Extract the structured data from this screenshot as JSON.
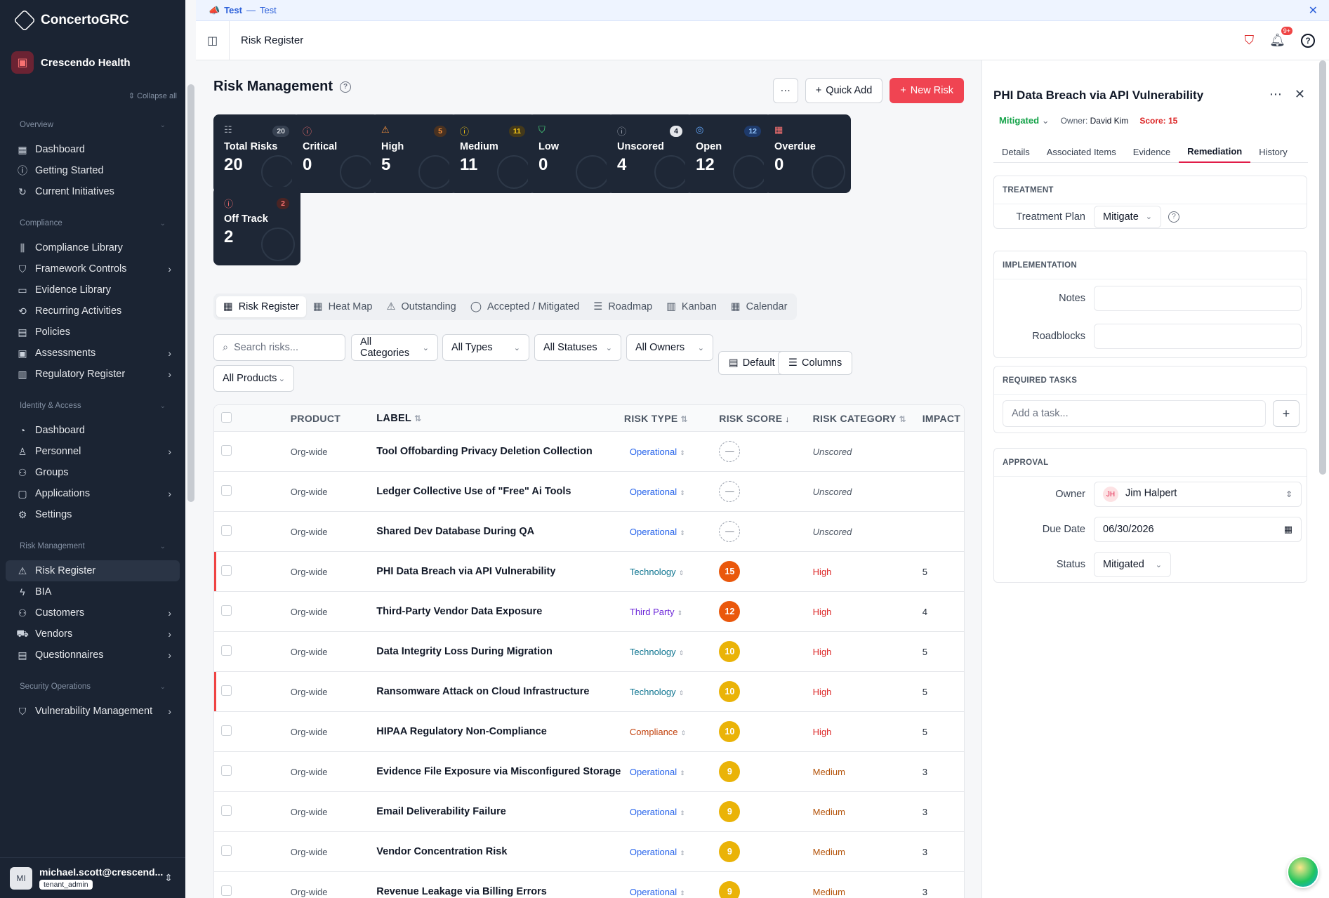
{
  "app": {
    "brand": "ConcertoGRC",
    "tenant": "Crescendo Health",
    "collapse_all": "Collapse all"
  },
  "sidebar": {
    "sections": [
      {
        "title": "Overview",
        "items": [
          {
            "label": "Dashboard",
            "icon": "grid-icon"
          },
          {
            "label": "Getting Started",
            "icon": "help-circle-icon"
          },
          {
            "label": "Current Initiatives",
            "icon": "refresh-icon"
          }
        ]
      },
      {
        "title": "Compliance",
        "items": [
          {
            "label": "Compliance Library",
            "icon": "library-icon"
          },
          {
            "label": "Framework Controls",
            "icon": "shield-icon",
            "expand": true
          },
          {
            "label": "Evidence Library",
            "icon": "archive-icon"
          },
          {
            "label": "Recurring Activities",
            "icon": "repeat-icon"
          },
          {
            "label": "Policies",
            "icon": "file-icon"
          },
          {
            "label": "Assessments",
            "icon": "clipboard-icon",
            "expand": true
          },
          {
            "label": "Regulatory Register",
            "icon": "book-icon",
            "expand": true
          }
        ]
      },
      {
        "title": "Identity & Access",
        "items": [
          {
            "label": "Dashboard",
            "icon": "gauge-icon"
          },
          {
            "label": "Personnel",
            "icon": "user-icon",
            "expand": true
          },
          {
            "label": "Groups",
            "icon": "users-icon"
          },
          {
            "label": "Applications",
            "icon": "app-window-icon",
            "expand": true
          },
          {
            "label": "Settings",
            "icon": "gear-icon"
          }
        ]
      },
      {
        "title": "Risk Management",
        "items": [
          {
            "label": "Risk Register",
            "icon": "warning-icon",
            "active": true
          },
          {
            "label": "BIA",
            "icon": "bolt-icon"
          },
          {
            "label": "Customers",
            "icon": "users-icon",
            "expand": true
          },
          {
            "label": "Vendors",
            "icon": "truck-icon",
            "expand": true
          },
          {
            "label": "Questionnaires",
            "icon": "file-icon",
            "expand": true
          }
        ]
      },
      {
        "title": "Security Operations",
        "items": [
          {
            "label": "Vulnerability Management",
            "icon": "shield-icon",
            "expand": true
          }
        ]
      }
    ],
    "user": {
      "initials": "MI",
      "name": "michael.scott@crescend...",
      "role": "tenant_admin"
    }
  },
  "banner": {
    "title": "Test",
    "sep": "—",
    "text": "Test"
  },
  "topbar": {
    "breadcrumb": "Risk Register",
    "notif_count": "9+"
  },
  "main": {
    "title": "Risk Management",
    "actions": {
      "more": "···",
      "quick_add": "Quick Add",
      "new_risk": "New Risk"
    },
    "cards": [
      {
        "label": "Total Risks",
        "value": "20",
        "badge": "20",
        "icon": "list-icon",
        "icon_color": "#9ca3af",
        "badge_bg": "#374151",
        "badge_fg": "#d1d5db"
      },
      {
        "label": "Critical",
        "value": "0",
        "badge": "",
        "icon": "alert-circle-icon",
        "icon_color": "#f87171",
        "badge_bg": "",
        "badge_fg": ""
      },
      {
        "label": "High",
        "value": "5",
        "badge": "5",
        "icon": "warning-icon",
        "icon_color": "#fb923c",
        "badge_bg": "#4a3221",
        "badge_fg": "#fb923c"
      },
      {
        "label": "Medium",
        "value": "11",
        "badge": "11",
        "icon": "alert-circle-icon",
        "icon_color": "#facc15",
        "badge_bg": "#44391a",
        "badge_fg": "#facc15"
      },
      {
        "label": "Low",
        "value": "0",
        "badge": "",
        "icon": "shield-icon",
        "icon_color": "#4ade80",
        "badge_bg": "",
        "badge_fg": ""
      },
      {
        "label": "Unscored",
        "value": "4",
        "badge": "4",
        "icon": "help-circle-icon",
        "icon_color": "#9ca3af",
        "badge_bg": "#e5e7eb",
        "badge_fg": "#111827"
      },
      {
        "label": "Open",
        "value": "12",
        "badge": "12",
        "icon": "target-icon",
        "icon_color": "#60a5fa",
        "badge_bg": "#1e3a6b",
        "badge_fg": "#93c5fd"
      },
      {
        "label": "Overdue",
        "value": "0",
        "badge": "",
        "icon": "calendar-icon",
        "icon_color": "#f87171",
        "badge_bg": "",
        "badge_fg": ""
      },
      {
        "label": "Off Track",
        "value": "2",
        "badge": "2",
        "icon": "alert-circle-icon",
        "icon_color": "#f87171",
        "badge_bg": "#4a2424",
        "badge_fg": "#f87171"
      }
    ],
    "tabs": [
      {
        "label": "Risk Register",
        "icon": "table-icon",
        "active": true
      },
      {
        "label": "Heat Map",
        "icon": "grid-icon"
      },
      {
        "label": "Outstanding",
        "icon": "warning-icon"
      },
      {
        "label": "Accepted / Mitigated",
        "icon": "check-circle-icon"
      },
      {
        "label": "Roadmap",
        "icon": "roadmap-icon"
      },
      {
        "label": "Kanban",
        "icon": "kanban-icon"
      },
      {
        "label": "Calendar",
        "icon": "calendar-icon"
      }
    ],
    "filters": {
      "search_placeholder": "Search risks...",
      "categories": "All Categories",
      "types": "All Types",
      "statuses": "All Statuses",
      "owners": "All Owners",
      "products": "All Products",
      "default_btn": "Default",
      "columns_btn": "Columns"
    },
    "table": {
      "headers": {
        "product": "PRODUCT",
        "label": "LABEL",
        "type": "RISK TYPE",
        "score": "RISK SCORE",
        "category": "RISK CATEGORY",
        "impact": "IMPACT"
      },
      "rows": [
        {
          "product": "Org-wide",
          "label": "Tool Offobarding Privacy Deletion Collection",
          "type": "Operational",
          "score": "—",
          "category": "Unscored",
          "impact": "",
          "flag": false
        },
        {
          "product": "Org-wide",
          "label": "Ledger Collective Use of \"Free\" Ai Tools",
          "type": "Operational",
          "score": "—",
          "category": "Unscored",
          "impact": "",
          "flag": false
        },
        {
          "product": "Org-wide",
          "label": "Shared Dev Database During QA",
          "type": "Operational",
          "score": "—",
          "category": "Unscored",
          "impact": "",
          "flag": false
        },
        {
          "product": "Org-wide",
          "label": "PHI Data Breach via API Vulnerability",
          "type": "Technology",
          "score": "15",
          "category": "High",
          "impact": "5",
          "flag": true
        },
        {
          "product": "Org-wide",
          "label": "Third-Party Vendor Data Exposure",
          "type": "Third Party",
          "score": "12",
          "category": "High",
          "impact": "4",
          "flag": false
        },
        {
          "product": "Org-wide",
          "label": "Data Integrity Loss During Migration",
          "type": "Technology",
          "score": "10",
          "category": "High",
          "impact": "5",
          "flag": false
        },
        {
          "product": "Org-wide",
          "label": "Ransomware Attack on Cloud Infrastructure",
          "type": "Technology",
          "score": "10",
          "category": "High",
          "impact": "5",
          "flag": true
        },
        {
          "product": "Org-wide",
          "label": "HIPAA Regulatory Non-Compliance",
          "type": "Compliance",
          "score": "10",
          "category": "High",
          "impact": "5",
          "flag": false
        },
        {
          "product": "Org-wide",
          "label": "Evidence File Exposure via Misconfigured Storage",
          "type": "Operational",
          "score": "9",
          "category": "Medium",
          "impact": "3",
          "flag": false
        },
        {
          "product": "Org-wide",
          "label": "Email Deliverability Failure",
          "type": "Operational",
          "score": "9",
          "category": "Medium",
          "impact": "3",
          "flag": false
        },
        {
          "product": "Org-wide",
          "label": "Vendor Concentration Risk",
          "type": "Operational",
          "score": "9",
          "category": "Medium",
          "impact": "3",
          "flag": false
        },
        {
          "product": "Org-wide",
          "label": "Revenue Leakage via Billing Errors",
          "type": "Operational",
          "score": "9",
          "category": "Medium",
          "impact": "3",
          "flag": false
        }
      ]
    }
  },
  "colors": {
    "Operational": "#2563eb",
    "Technology": "#0d7490",
    "Third Party": "#6d28d9",
    "Compliance": "#c2410c",
    "High": "#dc2626",
    "Medium": "#b45309",
    "score_15": "#ea580c",
    "score_12": "#ea580c",
    "score_10": "#eab308",
    "score_9": "#eab308"
  },
  "panel": {
    "title": "PHI Data Breach via API Vulnerability",
    "status": "Mitigated",
    "owner_label": "Owner:",
    "owner": "David Kim",
    "score_label": "Score: 15",
    "tabs": [
      "Details",
      "Associated Items",
      "Evidence",
      "Remediation",
      "History"
    ],
    "active_tab": 3,
    "treatment": {
      "header": "TREATMENT",
      "plan_label": "Treatment Plan",
      "plan_value": "Mitigate"
    },
    "implementation": {
      "header": "IMPLEMENTATION",
      "notes_label": "Notes",
      "roadblocks_label": "Roadblocks"
    },
    "tasks": {
      "header": "REQUIRED TASKS",
      "placeholder": "Add a task..."
    },
    "approval": {
      "header": "APPROVAL",
      "owner_label": "Owner",
      "owner_initials": "JH",
      "owner_value": "Jim Halpert",
      "due_label": "Due Date",
      "due_value": "06/30/2026",
      "status_label": "Status",
      "status_value": "Mitigated"
    }
  }
}
